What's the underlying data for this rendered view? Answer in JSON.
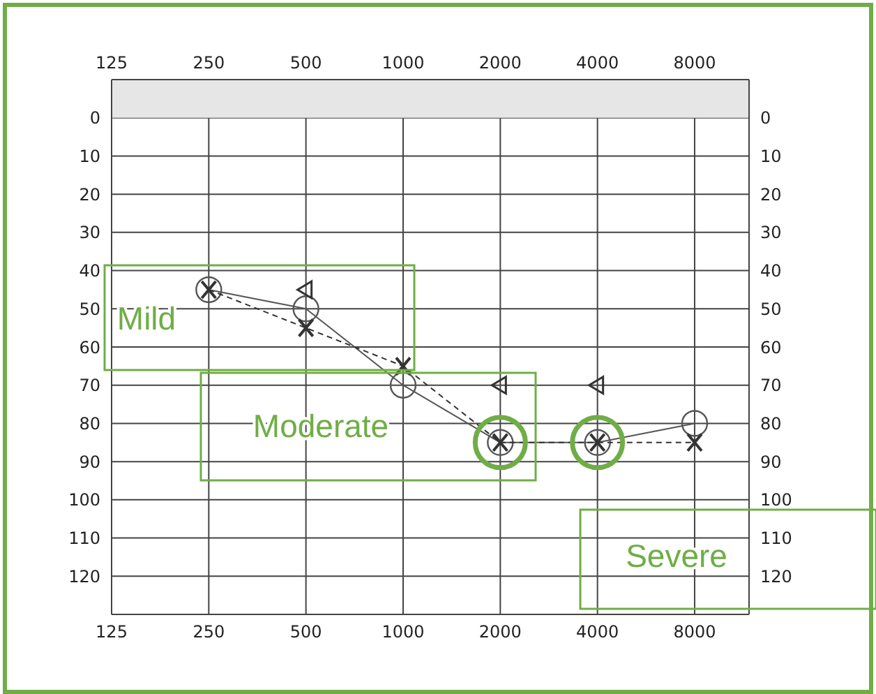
{
  "chart_data": {
    "type": "line",
    "categories": [
      "125",
      "250",
      "500",
      "1000",
      "2000",
      "4000",
      "8000"
    ],
    "ylim": [
      130,
      -10
    ],
    "yticks": [
      0,
      10,
      20,
      30,
      40,
      50,
      60,
      70,
      80,
      90,
      100,
      110,
      120
    ],
    "y2lim": [
      130,
      -10
    ],
    "y2ticks": [
      0,
      10,
      20,
      30,
      40,
      50,
      60,
      70,
      80,
      90,
      100,
      110,
      120
    ],
    "grid": true,
    "legend": false,
    "bands": [
      {
        "axis": "y",
        "from": -10,
        "to": 0,
        "color": "#e6e6e6"
      }
    ],
    "series": [
      {
        "values": [
          null,
          45,
          50,
          70,
          85,
          85,
          80
        ],
        "color": "#555555",
        "marker": "circle",
        "line_style": "solid"
      },
      {
        "values": [
          null,
          45,
          55,
          65,
          85,
          85,
          85
        ],
        "color": "#333333",
        "marker": "cross",
        "line_style": "dashed"
      },
      {
        "type": "scatter",
        "values": [
          null,
          null,
          45,
          null,
          70,
          70,
          null
        ],
        "color": "#333333",
        "marker": "triangle"
      }
    ],
    "annotations": [
      "Mild",
      "Moderate",
      "Severe"
    ]
  }
}
